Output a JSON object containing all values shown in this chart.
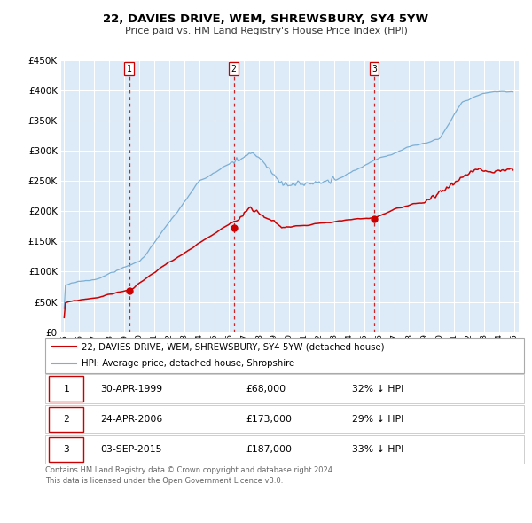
{
  "title": "22, DAVIES DRIVE, WEM, SHREWSBURY, SY4 5YW",
  "subtitle": "Price paid vs. HM Land Registry's House Price Index (HPI)",
  "legend_property": "22, DAVIES DRIVE, WEM, SHREWSBURY, SY4 5YW (detached house)",
  "legend_hpi": "HPI: Average price, detached house, Shropshire",
  "footnote": "Contains HM Land Registry data © Crown copyright and database right 2024.\nThis data is licensed under the Open Government Licence v3.0.",
  "sales": [
    {
      "label": "1",
      "date": "30-APR-1999",
      "price": 68000,
      "pct": "32%",
      "direction": "↓"
    },
    {
      "label": "2",
      "date": "24-APR-2006",
      "price": 173000,
      "pct": "29%",
      "direction": "↓"
    },
    {
      "label": "3",
      "date": "03-SEP-2015",
      "price": 187000,
      "pct": "33%",
      "direction": "↓"
    }
  ],
  "sale_dates_decimal": [
    1999.33,
    2006.31,
    2015.67
  ],
  "sale_prices": [
    68000,
    173000,
    187000
  ],
  "property_color": "#cc0000",
  "hpi_color": "#7bafd4",
  "vline_color": "#cc0000",
  "background_color": "#ddeaf7",
  "grid_color": "#ffffff",
  "ylim": [
    0,
    450000
  ],
  "yticks": [
    0,
    50000,
    100000,
    150000,
    200000,
    250000,
    300000,
    350000,
    400000,
    450000
  ],
  "year_start": 1995,
  "year_end": 2025
}
